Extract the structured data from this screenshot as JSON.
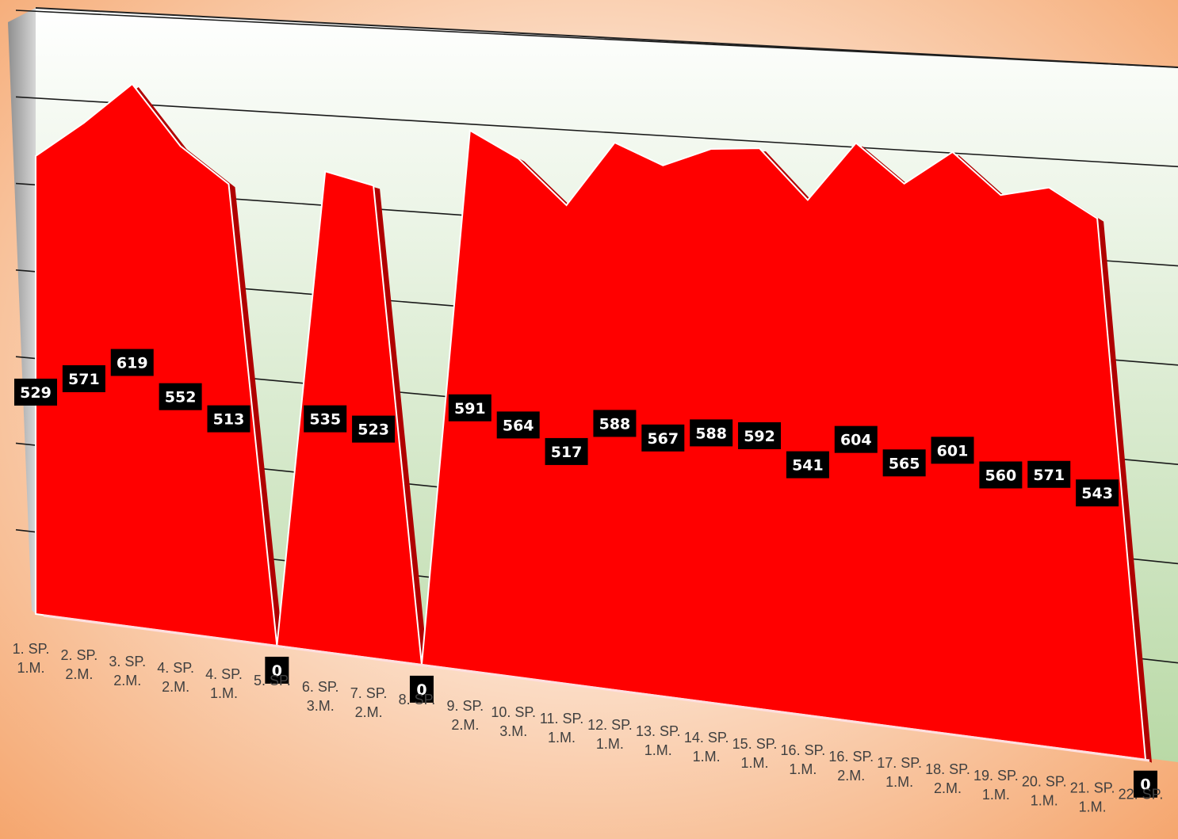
{
  "chart_data": {
    "type": "area",
    "title": "",
    "xlabel": "",
    "ylabel": "",
    "categories": [
      "1. SP. 1.M.",
      "2. SP. 2.M.",
      "3. SP. 2.M.",
      "4. SP. 2.M.",
      "4. SP. 1.M.",
      "5. SP.",
      "6. SP. 3.M.",
      "7. SP. 2.M.",
      "8. SP.",
      "9. SP. 2.M.",
      "10. SP. 3.M.",
      "11. SP. 1.M.",
      "12. SP. 1.M.",
      "13. SP. 1.M.",
      "14. SP. 1.M.",
      "15. SP. 1.M.",
      "16. SP. 1.M.",
      "16. SP. 2.M.",
      "17. SP. 1.M.",
      "18. SP. 2.M.",
      "19. SP. 1.M.",
      "20. SP. 1.M.",
      "21. SP. 1.M.",
      "22. SP."
    ],
    "values": [
      529,
      571,
      619,
      552,
      513,
      0,
      535,
      523,
      0,
      591,
      564,
      517,
      588,
      567,
      588,
      592,
      541,
      604,
      565,
      601,
      560,
      571,
      543,
      0
    ],
    "ylim": [
      0,
      700
    ],
    "grid": true,
    "legend": "none",
    "colors": {
      "area": "#ff0000",
      "area_edge": "#b00000",
      "label_bg": "#000000",
      "label_text": "#ffffff"
    }
  }
}
